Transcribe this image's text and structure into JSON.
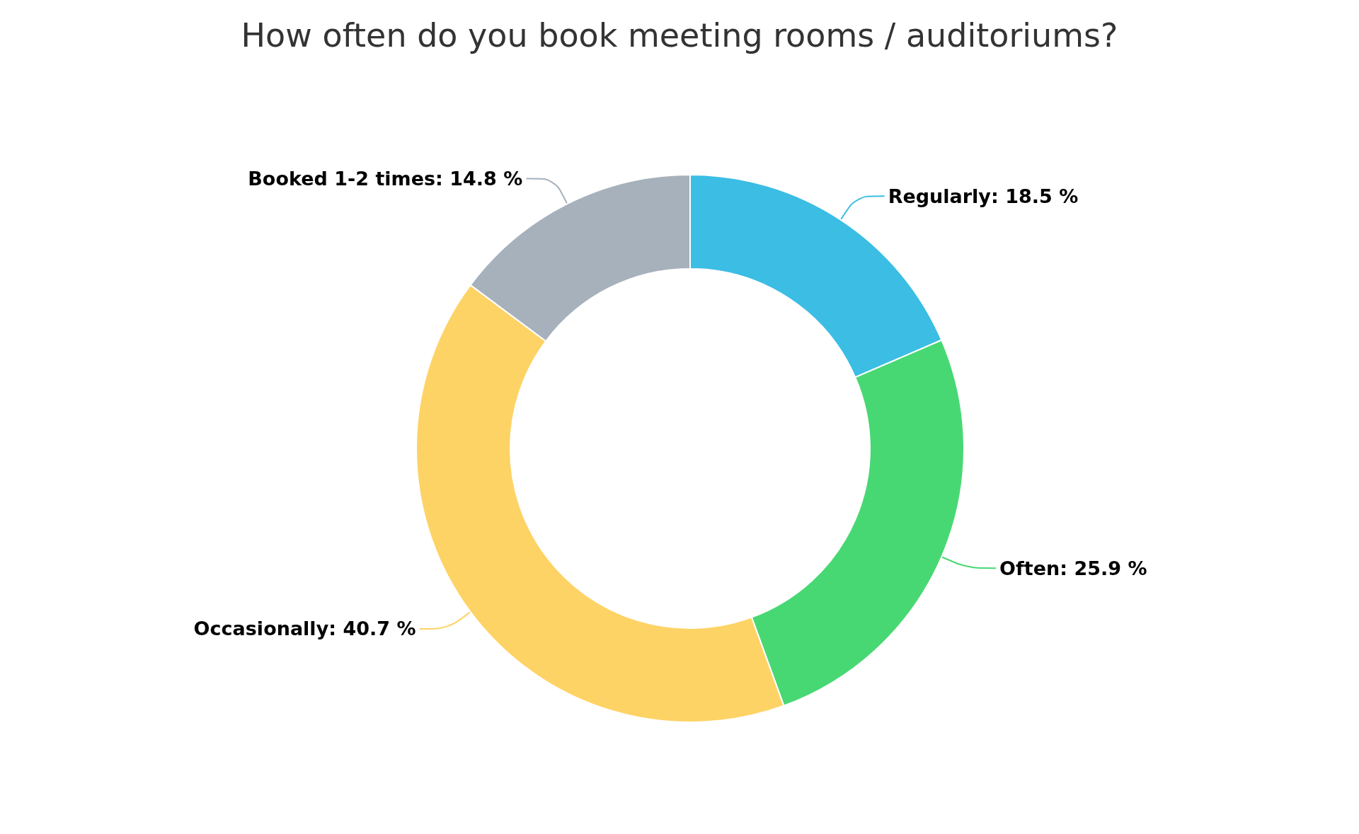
{
  "chart_data": {
    "type": "donut",
    "title": "How often do you book meeting rooms / auditoriums?",
    "categories": [
      "Regularly",
      "Often",
      "Occasionally",
      "Booked 1-2 times"
    ],
    "values": [
      18.5,
      25.9,
      40.7,
      14.8
    ],
    "colors": [
      "#3bbde4",
      "#48d873",
      "#fed365",
      "#a6b1bc"
    ],
    "value_labels": [
      "18.5 %",
      "25.9 %",
      "40.7 %",
      "14.8 %"
    ],
    "legend": false
  }
}
